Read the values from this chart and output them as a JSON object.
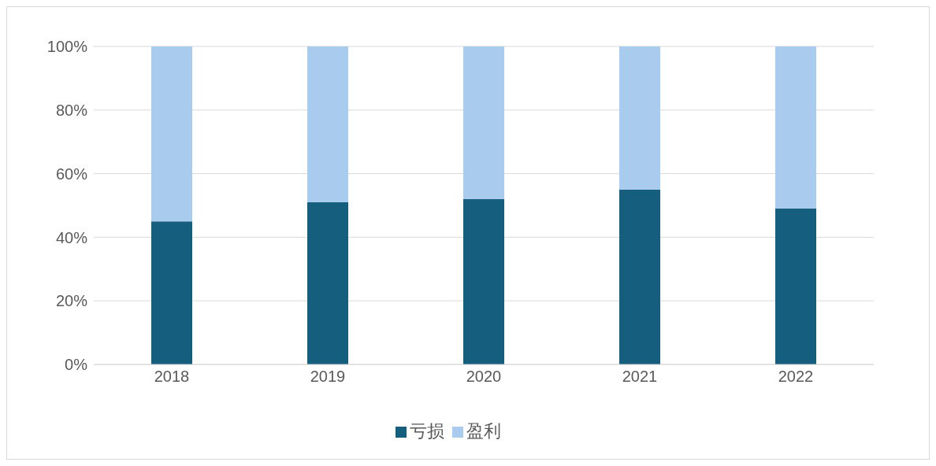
{
  "chart_data": {
    "type": "bar",
    "stacked": true,
    "categories": [
      "2018",
      "2019",
      "2020",
      "2021",
      "2022"
    ],
    "series": [
      {
        "name": "亏损",
        "color": "#165e7e",
        "values": [
          45,
          51,
          52,
          55,
          49
        ]
      },
      {
        "name": "盈利",
        "color": "#a9cbee",
        "values": [
          55,
          49,
          48,
          45,
          51
        ]
      }
    ],
    "ylim": [
      0,
      100
    ],
    "yticks": [
      {
        "value": 0,
        "label": "0%"
      },
      {
        "value": 20,
        "label": "20%"
      },
      {
        "value": 40,
        "label": "40%"
      },
      {
        "value": 60,
        "label": "60%"
      },
      {
        "value": 80,
        "label": "80%"
      },
      {
        "value": 100,
        "label": "100%"
      }
    ],
    "grid": "y",
    "legend": "bottom"
  }
}
